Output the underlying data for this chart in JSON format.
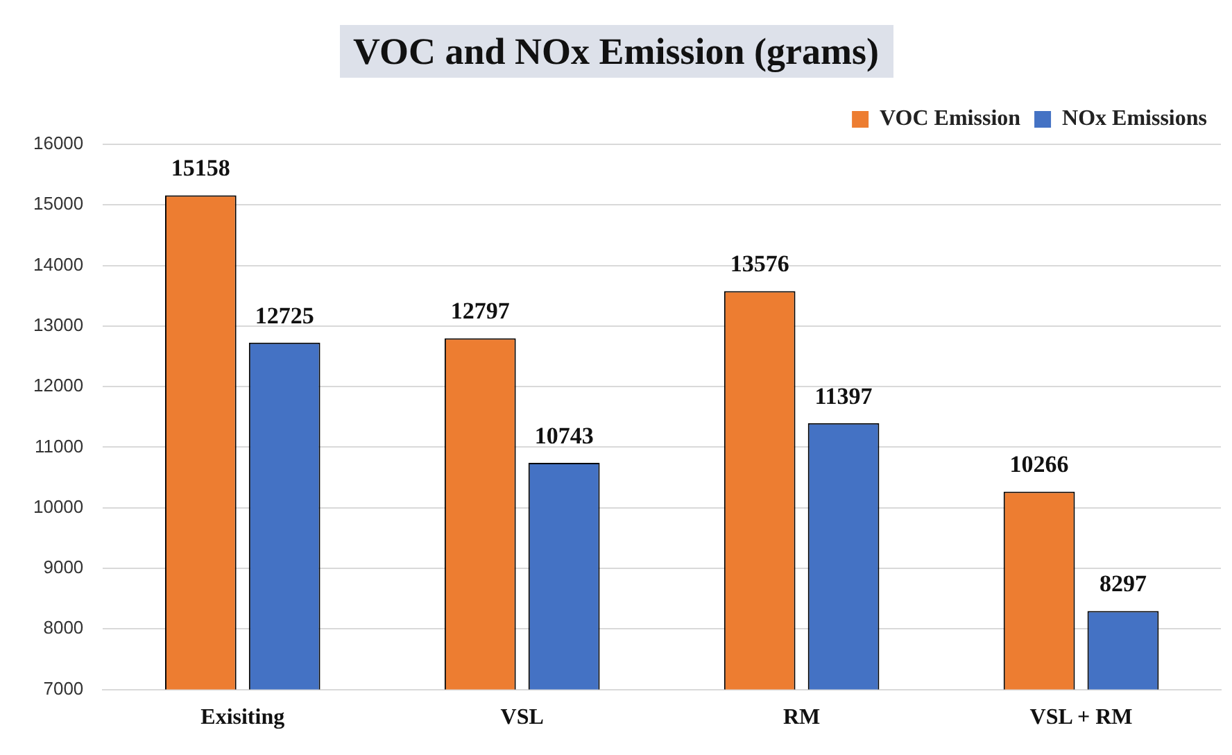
{
  "chart_data": {
    "type": "bar",
    "title": "VOC and NOx Emission (grams)",
    "categories": [
      "Exisiting",
      "VSL",
      "RM",
      "VSL + RM"
    ],
    "series": [
      {
        "name": "VOC Emission",
        "color": "#ed7d31",
        "values": [
          15158,
          12797,
          13576,
          10266
        ]
      },
      {
        "name": "NOx Emissions",
        "color": "#4472c4",
        "values": [
          12725,
          10743,
          11397,
          8297
        ]
      }
    ],
    "ylim": [
      7000,
      16000
    ],
    "yticks": [
      7000,
      8000,
      9000,
      10000,
      11000,
      12000,
      13000,
      14000,
      15000,
      16000
    ],
    "grid": "y",
    "legend": "top right",
    "data_labels": true
  }
}
